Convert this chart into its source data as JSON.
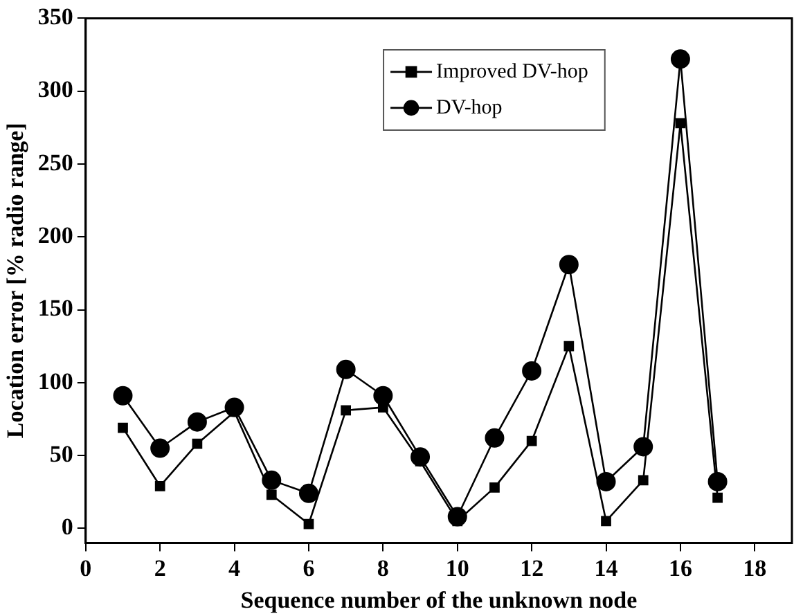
{
  "chart_data": {
    "type": "line",
    "xlabel": "Sequence number of the unknown node",
    "ylabel": "Location error [% radio range]",
    "x": [
      1,
      2,
      3,
      4,
      5,
      6,
      7,
      8,
      9,
      10,
      11,
      12,
      13,
      14,
      15,
      16,
      17
    ],
    "series": [
      {
        "name": "Improved DV-hop",
        "color": "#000000",
        "marker": "square",
        "values": [
          69,
          29,
          58,
          80,
          23,
          3,
          81,
          83,
          46,
          5,
          28,
          60,
          125,
          5,
          33,
          278,
          21
        ]
      },
      {
        "name": "DV-hop",
        "color": "#000000",
        "marker": "circle",
        "values": [
          91,
          55,
          73,
          83,
          33,
          24,
          109,
          91,
          49,
          8,
          62,
          108,
          181,
          32,
          56,
          322,
          32
        ]
      }
    ],
    "xlim": [
      0,
      19
    ],
    "xticks": [
      0,
      2,
      4,
      6,
      8,
      10,
      12,
      14,
      16,
      18
    ],
    "ylim": [
      -10,
      350
    ],
    "yticks": [
      0,
      50,
      100,
      150,
      200,
      250,
      300,
      350
    ],
    "grid": false,
    "legend": "top",
    "line_style": "solid"
  }
}
